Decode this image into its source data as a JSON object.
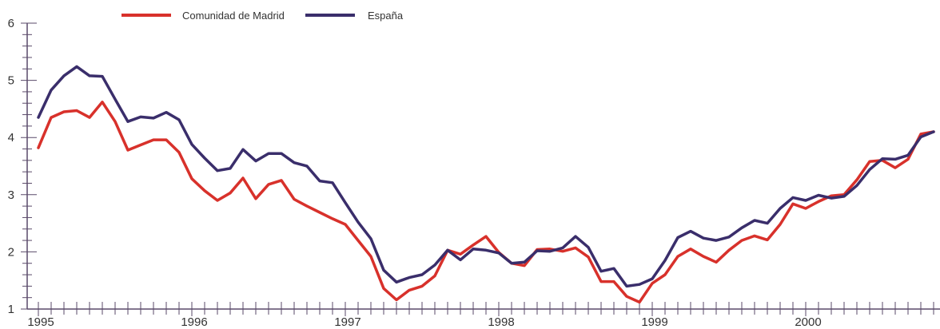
{
  "chart_data": {
    "type": "line",
    "title": "",
    "xlabel": "",
    "ylabel": "",
    "ylim": [
      1,
      6
    ],
    "yticks": [
      "1",
      "2",
      "3",
      "4",
      "5",
      "6"
    ],
    "xticks": [
      "1995",
      "1996",
      "1997",
      "1998",
      "1999",
      "2000"
    ],
    "grid": false,
    "legend_position": "top",
    "series": [
      {
        "name": "Comunidad de Madrid",
        "color": "#d8312b",
        "values": [
          3.82,
          4.35,
          4.45,
          4.47,
          4.35,
          4.62,
          4.28,
          3.78,
          3.87,
          3.96,
          3.96,
          3.74,
          3.28,
          3.07,
          2.9,
          3.03,
          3.29,
          2.93,
          3.18,
          3.25,
          2.92,
          2.8,
          2.69,
          2.58,
          2.48,
          2.2,
          1.92,
          1.36,
          1.16,
          1.33,
          1.4,
          1.58,
          2.03,
          1.96,
          2.12,
          2.27,
          1.99,
          1.8,
          1.76,
          2.04,
          2.05,
          2.01,
          2.07,
          1.91,
          1.48,
          1.48,
          1.22,
          1.12,
          1.45,
          1.6,
          1.92,
          2.05,
          1.92,
          1.82,
          2.03,
          2.2,
          2.28,
          2.21,
          2.48,
          2.84,
          2.76,
          2.88,
          2.98,
          3.0,
          3.26,
          3.58,
          3.6,
          3.47,
          3.62,
          4.06,
          4.1
        ]
      },
      {
        "name": "España",
        "color": "#3a2e6b",
        "values": [
          4.35,
          4.83,
          5.08,
          5.24,
          5.08,
          5.07,
          4.67,
          4.28,
          4.36,
          4.34,
          4.44,
          4.31,
          3.88,
          3.64,
          3.42,
          3.46,
          3.79,
          3.59,
          3.72,
          3.72,
          3.56,
          3.5,
          3.24,
          3.21,
          2.86,
          2.52,
          2.23,
          1.68,
          1.47,
          1.55,
          1.6,
          1.77,
          2.03,
          1.86,
          2.05,
          2.03,
          1.98,
          1.8,
          1.82,
          2.02,
          2.01,
          2.07,
          2.27,
          2.08,
          1.66,
          1.71,
          1.4,
          1.43,
          1.53,
          1.85,
          2.25,
          2.36,
          2.24,
          2.2,
          2.26,
          2.42,
          2.55,
          2.5,
          2.76,
          2.95,
          2.9,
          2.99,
          2.94,
          2.97,
          3.16,
          3.44,
          3.63,
          3.62,
          3.69,
          4.01,
          4.1
        ]
      }
    ]
  }
}
